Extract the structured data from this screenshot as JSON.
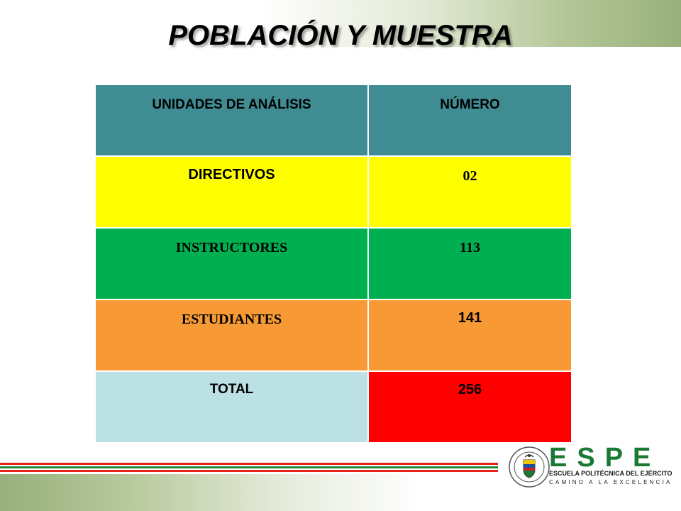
{
  "slide": {
    "title": "POBLACIÓN Y MUESTRA"
  },
  "table": {
    "headers": [
      "UNIDADES DE ANÁLISIS",
      "NÚMERO"
    ],
    "rows": [
      {
        "label": "DIRECTIVOS",
        "value": "02"
      },
      {
        "label": "INSTRUCTORES",
        "value": "113"
      },
      {
        "label": "ESTUDIANTES",
        "value": "141"
      },
      {
        "label": "TOTAL",
        "value": "256"
      }
    ]
  },
  "logo": {
    "letters": "ESPE",
    "name": "ESCUELA POLITÉCNICA DEL EJÉRCITO",
    "motto": "CAMINO A LA EXCELENCIA",
    "seal_text": "ESCUELA POLITÉCNICA DEL EJÉRCITO ECUADOR"
  },
  "colors": {
    "header": "#3f8c92",
    "directivos": "#ffff00",
    "instructores": "#00b050",
    "estudiantes": "#f79a36",
    "total_label": "#bce1e5",
    "total_value": "#ff0000",
    "brand_green": "#1a7a35"
  }
}
